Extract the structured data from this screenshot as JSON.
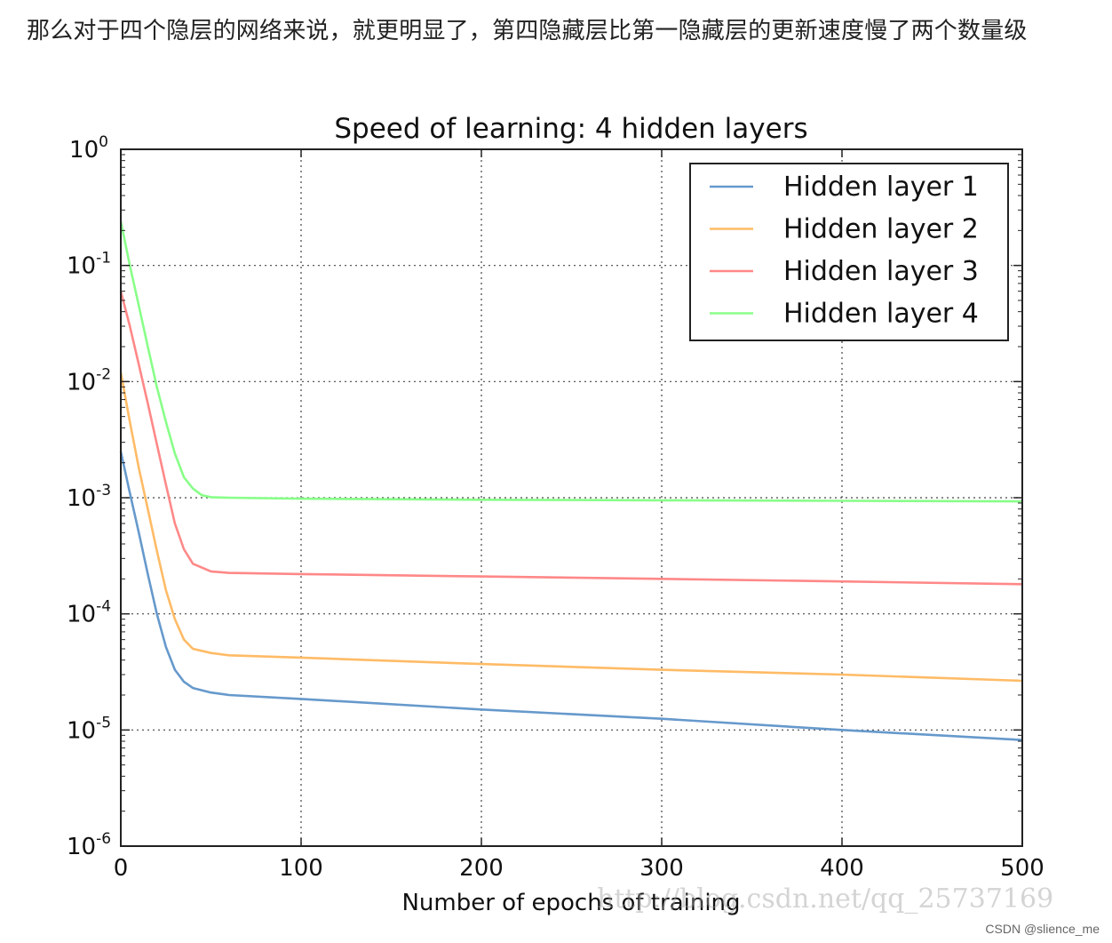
{
  "caption": "那么对于四个隐层的网络来说，就更明显了，第四隐藏层比第一隐藏层的更新速度慢了两个数量级",
  "watermark": "http://blog.csdn.net/qq_25737169",
  "credit": "CSDN @slience_me",
  "chart_data": {
    "type": "line",
    "title": "Speed of learning: 4 hidden layers",
    "xlabel": "Number of epochs of training",
    "ylabel": "",
    "xlim": [
      0,
      500
    ],
    "ylim": [
      1e-06,
      1
    ],
    "yscale": "log",
    "grid": true,
    "legend_position": "top-right",
    "x_ticks": [
      0,
      100,
      200,
      300,
      400,
      500
    ],
    "y_ticks": [
      {
        "value": 1e-06,
        "base": "10",
        "exp": "-6"
      },
      {
        "value": 1e-05,
        "base": "10",
        "exp": "-5"
      },
      {
        "value": 0.0001,
        "base": "10",
        "exp": "-4"
      },
      {
        "value": 0.001,
        "base": "10",
        "exp": "-3"
      },
      {
        "value": 0.01,
        "base": "10",
        "exp": "-2"
      },
      {
        "value": 0.1,
        "base": "10",
        "exp": "-1"
      },
      {
        "value": 1,
        "base": "10",
        "exp": "0"
      }
    ],
    "series": [
      {
        "name": "Hidden layer 1",
        "color": "#6699cc",
        "x": [
          0,
          5,
          10,
          15,
          20,
          25,
          30,
          35,
          40,
          50,
          60,
          100,
          200,
          300,
          400,
          500
        ],
        "y": [
          0.0025,
          0.0011,
          0.0005,
          0.00022,
          0.0001,
          5.2e-05,
          3.3e-05,
          2.6e-05,
          2.3e-05,
          2.1e-05,
          2e-05,
          1.85e-05,
          1.5e-05,
          1.25e-05,
          1e-05,
          8.2e-06
        ]
      },
      {
        "name": "Hidden layer 2",
        "color": "#ffbb66",
        "x": [
          0,
          5,
          10,
          15,
          20,
          25,
          30,
          35,
          40,
          50,
          60,
          100,
          200,
          300,
          400,
          500
        ],
        "y": [
          0.012,
          0.0045,
          0.0018,
          0.0008,
          0.00035,
          0.00016,
          9e-05,
          6e-05,
          5e-05,
          4.6e-05,
          4.4e-05,
          4.2e-05,
          3.7e-05,
          3.3e-05,
          3e-05,
          2.65e-05
        ]
      },
      {
        "name": "Hidden layer 3",
        "color": "#ff8888",
        "x": [
          0,
          5,
          10,
          15,
          20,
          25,
          30,
          35,
          40,
          50,
          60,
          100,
          200,
          300,
          400,
          500
        ],
        "y": [
          0.06,
          0.03,
          0.014,
          0.0065,
          0.0029,
          0.0013,
          0.0006,
          0.00036,
          0.00027,
          0.000232,
          0.000225,
          0.00022,
          0.00021,
          0.0002,
          0.00019,
          0.00018
        ]
      },
      {
        "name": "Hidden layer 4",
        "color": "#88ff88",
        "x": [
          0,
          5,
          10,
          15,
          20,
          25,
          30,
          35,
          40,
          45,
          50,
          60,
          100,
          200,
          300,
          400,
          500
        ],
        "y": [
          0.24,
          0.1,
          0.045,
          0.02,
          0.009,
          0.0045,
          0.0024,
          0.0015,
          0.0012,
          0.00105,
          0.00101,
          0.001,
          0.00098,
          0.00096,
          0.00095,
          0.00094,
          0.00093
        ]
      }
    ]
  }
}
